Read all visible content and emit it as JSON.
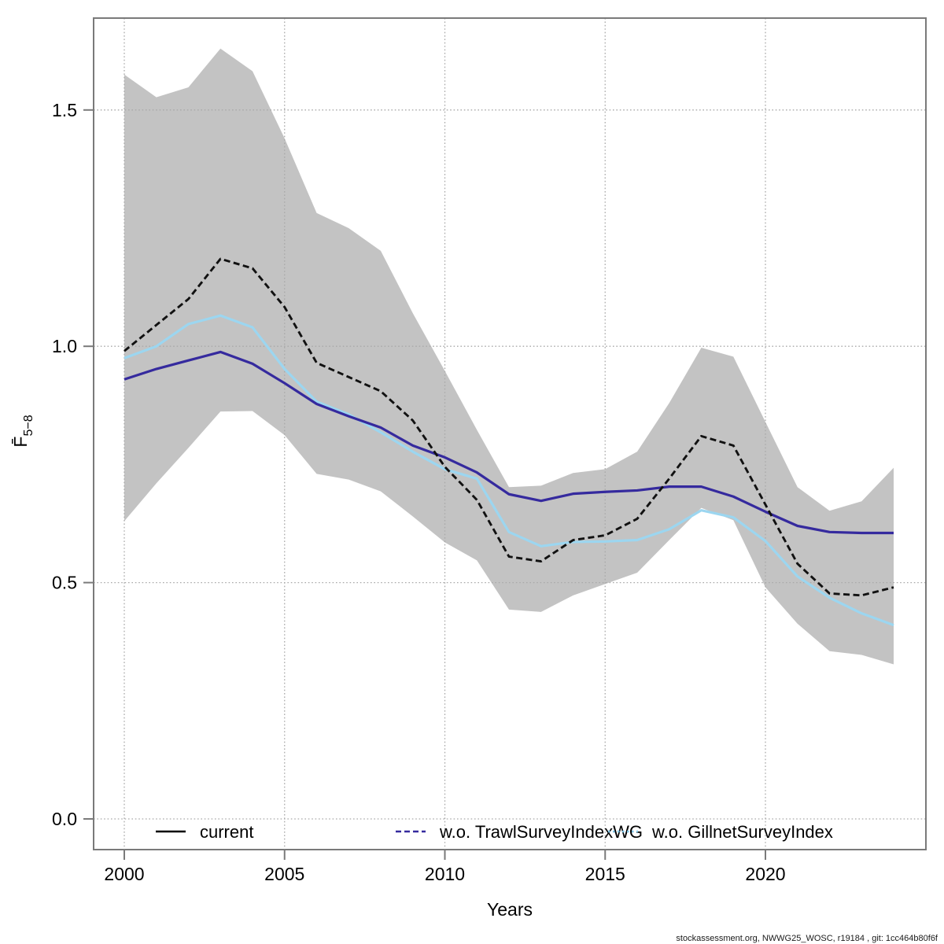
{
  "footer": {
    "text": "stockassessment.org, NWWG25_WOSC, r19184 , git: 1cc464b80f6f"
  },
  "legend": {
    "items": [
      {
        "label": "current",
        "color": "#000000",
        "pattern": "solid"
      },
      {
        "label": "w.o. TrawlSurveyIndexWG",
        "color": "#352a9e",
        "pattern": "dashed"
      },
      {
        "label": "w.o. GillnetSurveyIndex",
        "color": "#7cc2e4",
        "pattern": "dotted"
      }
    ]
  },
  "chart_data": {
    "type": "line",
    "title": "",
    "xlabel": "Years",
    "ylabel_main": "F̄",
    "ylabel_sub": "5−8",
    "xticks": [
      2000,
      2005,
      2010,
      2015,
      2020
    ],
    "yticks": [
      "0.0",
      "0.5",
      "1.0",
      "1.5"
    ],
    "ytick_values": [
      0.0,
      0.5,
      1.0,
      1.5
    ],
    "xlim": [
      1999,
      2025
    ],
    "ylim": [
      -0.06,
      1.69
    ],
    "grid": true,
    "legend_position": "bottom-inside-horizontal",
    "x": [
      2000,
      2001,
      2002,
      2003,
      2004,
      2005,
      2006,
      2007,
      2008,
      2009,
      2010,
      2011,
      2012,
      2013,
      2014,
      2015,
      2016,
      2017,
      2018,
      2019,
      2020,
      2021,
      2022,
      2023,
      2024
    ],
    "band": {
      "name": "current-confidence-band",
      "color": "#c3c3c3",
      "lower": [
        0.63,
        0.71,
        0.785,
        0.862,
        0.863,
        0.812,
        0.73,
        0.718,
        0.693,
        0.64,
        0.585,
        0.547,
        0.443,
        0.438,
        0.473,
        0.497,
        0.521,
        0.59,
        0.658,
        0.632,
        0.49,
        0.413,
        0.355,
        0.347,
        0.327
      ],
      "upper": [
        1.575,
        1.527,
        1.548,
        1.63,
        1.582,
        1.44,
        1.282,
        1.25,
        1.202,
        1.07,
        0.948,
        0.823,
        0.702,
        0.705,
        0.732,
        0.74,
        0.777,
        0.88,
        0.997,
        0.978,
        0.84,
        0.702,
        0.652,
        0.672,
        0.743
      ]
    },
    "series": [
      {
        "name": "w.o. GillnetSurveyIndex",
        "color": "#9cd6f0",
        "style": "solid",
        "width": 3.2,
        "values": [
          0.975,
          1.0,
          1.047,
          1.065,
          1.04,
          0.952,
          0.883,
          0.856,
          0.818,
          0.777,
          0.74,
          0.72,
          0.607,
          0.577,
          0.586,
          0.587,
          0.59,
          0.613,
          0.653,
          0.638,
          0.588,
          0.513,
          0.468,
          0.435,
          0.41
        ]
      },
      {
        "name": "w.o. TrawlSurveyIndexWG",
        "color": "#352a9e",
        "style": "solid",
        "width": 3.2,
        "values": [
          0.93,
          0.952,
          0.97,
          0.988,
          0.963,
          0.922,
          0.878,
          0.852,
          0.828,
          0.79,
          0.765,
          0.733,
          0.687,
          0.673,
          0.688,
          0.692,
          0.695,
          0.703,
          0.703,
          0.682,
          0.65,
          0.62,
          0.607,
          0.605,
          0.605
        ]
      },
      {
        "name": "current",
        "color": "#111111",
        "style": "dashed",
        "width": 2.9,
        "values": [
          0.99,
          1.045,
          1.1,
          1.185,
          1.165,
          1.083,
          0.965,
          0.935,
          0.905,
          0.843,
          0.745,
          0.675,
          0.555,
          0.545,
          0.59,
          0.6,
          0.635,
          0.72,
          0.81,
          0.79,
          0.665,
          0.54,
          0.477,
          0.473,
          0.49
        ]
      }
    ]
  }
}
